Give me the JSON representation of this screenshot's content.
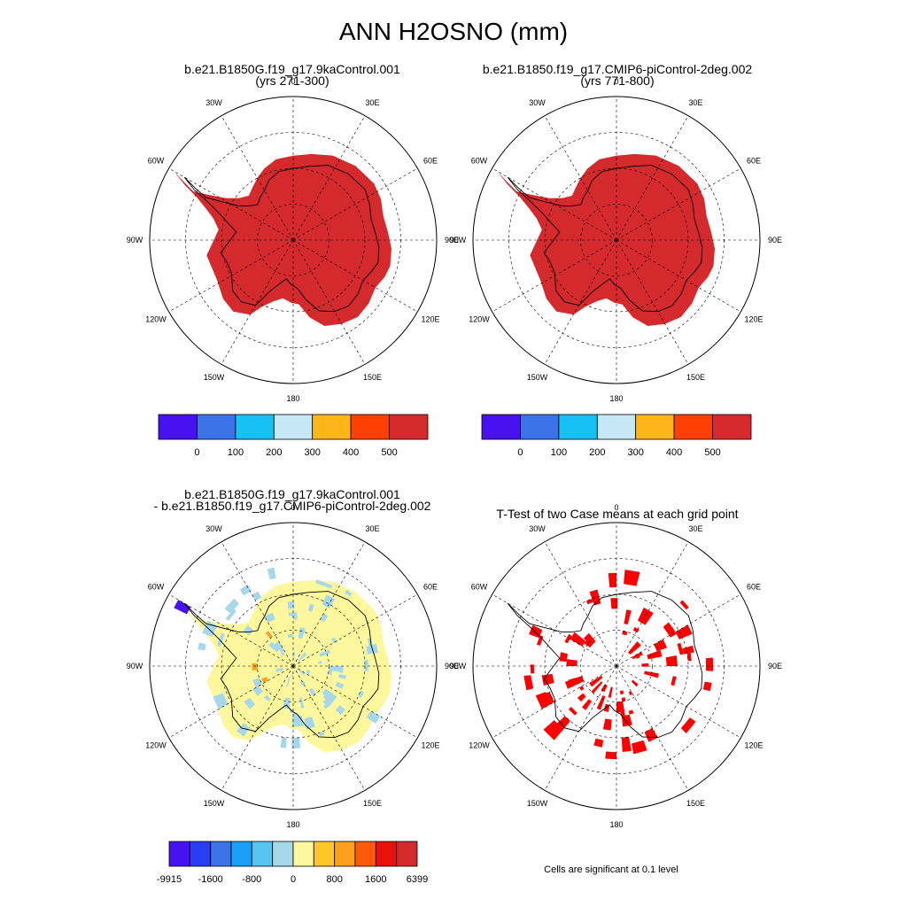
{
  "title": "ANN H2OSNO (mm)",
  "panels": [
    {
      "id": "case1",
      "title_lines": [
        "b.e21.B1850G.f19_g17.9kaControl.001",
        "(yrs 271-300)"
      ]
    },
    {
      "id": "case2",
      "title_lines": [
        "b.e21.B1850.f19_g17.CMIP6-piControl-2deg.002",
        "(yrs 771-800)"
      ]
    },
    {
      "id": "diff",
      "title_lines": [
        "b.e21.B1850G.f19_g17.9kaControl.001",
        "- b.e21.B1850.f19_g17.CMIP6-piControl-2deg.002"
      ]
    },
    {
      "id": "ttest",
      "title_lines": [
        "T-Test of two Case means at each grid point"
      ]
    }
  ],
  "longitude_labels": [
    "0",
    "30E",
    "60E",
    "90E",
    "120E",
    "150E",
    "180",
    "150W",
    "120W",
    "90W",
    "60W",
    "30W"
  ],
  "colorbar_abs": {
    "colors": [
      "#4812f0",
      "#3b72e8",
      "#17c0f5",
      "#c6e7f5",
      "#fcb619",
      "#fe3f06",
      "#d42a2e"
    ],
    "tick_labels": [
      "0",
      "100",
      "200",
      "300",
      "400",
      "500"
    ]
  },
  "colorbar_diff": {
    "colors": [
      "#4812f0",
      "#2a3df2",
      "#3b72e8",
      "#17a0f5",
      "#55c5f0",
      "#a6d8ea",
      "#fdf79d",
      "#fdc827",
      "#fca01d",
      "#fe5a0a",
      "#e8120d",
      "#d42a2e"
    ],
    "tick_labels": [
      "-9915",
      "-1600",
      "-800",
      "0",
      "800",
      "1600",
      "6399"
    ]
  },
  "colors": {
    "snow_full": "#d42a2e",
    "diff_fill": "#fdf79d",
    "diff_neg_small": "#a6d8ea",
    "diff_pos_mid": "#fca01d",
    "diff_neg_large": "#4812f0",
    "significant": "#ff0000"
  },
  "significance_note": "Cells are significant at 0.1 level"
}
